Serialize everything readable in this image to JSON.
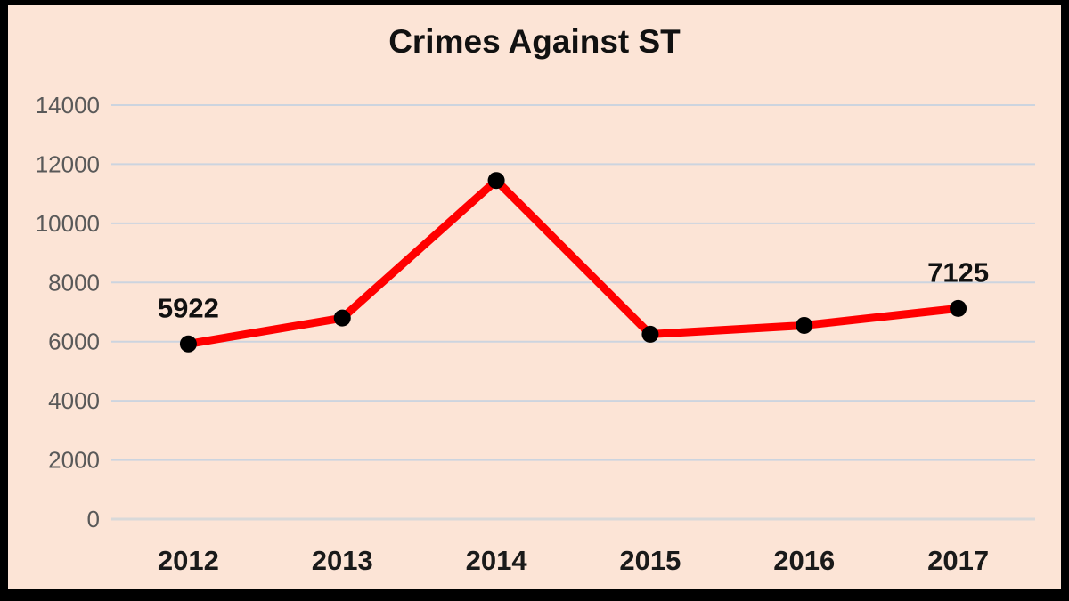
{
  "chart_data": {
    "type": "line",
    "title": "Crimes Against ST",
    "categories": [
      "2012",
      "2013",
      "2014",
      "2015",
      "2016",
      "2017"
    ],
    "values": [
      5922,
      6800,
      11450,
      6250,
      6550,
      7125
    ],
    "data_labels": [
      {
        "index": 0,
        "category": "2012",
        "text": "5922"
      },
      {
        "index": 5,
        "category": "2017",
        "text": "7125"
      }
    ],
    "xlabel": "",
    "ylabel": "",
    "ylim": [
      0,
      14000
    ],
    "ytick_step": 2000,
    "yticks": [
      0,
      2000,
      4000,
      6000,
      8000,
      10000,
      12000,
      14000
    ],
    "grid": true,
    "legend": "none",
    "colors": {
      "background": "#fce4d6",
      "frame_border": "#000000",
      "line": "#ff0000",
      "marker": "#000000",
      "gridline": "#ccd4df",
      "axis_line": "#d9d9d9",
      "ytick_text": "#595959",
      "xtick_text": "#1a1a1a",
      "title_text": "#111111",
      "data_label_text": "#111111"
    }
  }
}
